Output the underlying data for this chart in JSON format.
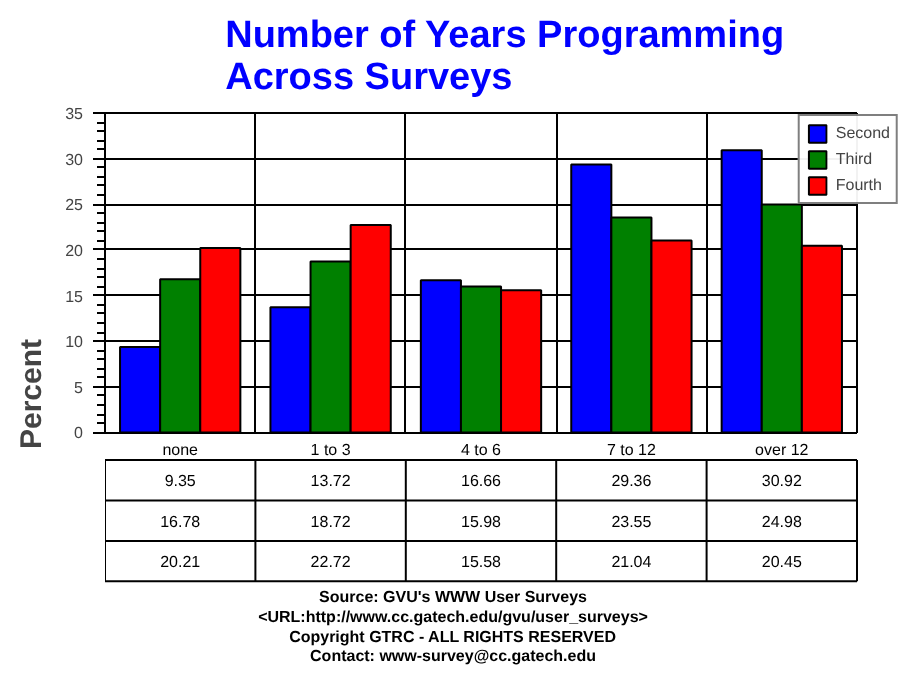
{
  "chart_data": {
    "type": "bar",
    "title": "Number of Years Programming\nAcross Surveys",
    "ylabel": "Percent",
    "categories": [
      "none",
      "1 to 3",
      "4 to 6",
      "7 to 12",
      "over 12"
    ],
    "series": [
      {
        "name": "Second",
        "color": "#0000ff",
        "values": [
          9.35,
          13.72,
          16.66,
          29.36,
          30.92
        ]
      },
      {
        "name": "Third",
        "color": "#008000",
        "values": [
          16.78,
          18.72,
          15.98,
          23.55,
          24.98
        ]
      },
      {
        "name": "Fourth",
        "color": "#ff0000",
        "values": [
          20.21,
          22.72,
          15.58,
          21.04,
          20.45
        ]
      }
    ],
    "ylim": [
      0,
      35
    ],
    "yticks": [
      0,
      5,
      10,
      15,
      20,
      25,
      30,
      35
    ],
    "grid": true,
    "legend": "top right",
    "data_labels": true,
    "annotations": [
      "Source: GVU's WWW User Surveys",
      "<URL:http://www.cc.gatech.edu/gvu/user_surveys>",
      "Copyright GTRC - ALL RIGHTS RESERVED",
      "Contact: www-survey@cc.gatech.edu"
    ]
  }
}
